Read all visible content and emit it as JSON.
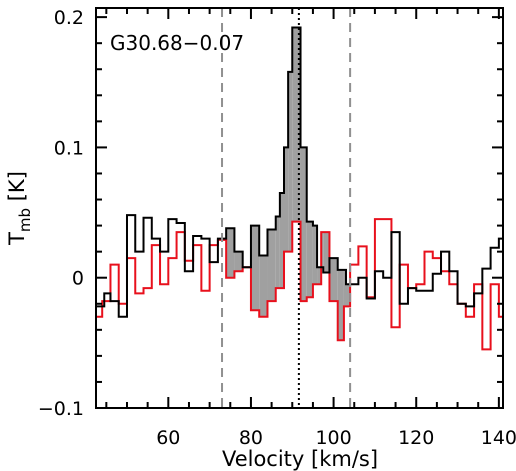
{
  "chart_data": {
    "type": "line",
    "title": "",
    "xlabel": "Velocity [km/s]",
    "ylabel": "T",
    "ylabel_sub": "mb",
    "ylabel_unit": " [K]",
    "annotation": "G30.68−0.07",
    "xlim": [
      42.5,
      141
    ],
    "ylim": [
      -0.1,
      0.207
    ],
    "x_ticks": [
      60,
      80,
      100,
      120,
      140
    ],
    "x_tick_labels": [
      "60",
      "80",
      "100",
      "120",
      "140"
    ],
    "y_ticks": [
      -0.1,
      0,
      0.1,
      0.2
    ],
    "y_tick_labels": [
      "−0.1",
      "0",
      "0.1",
      "0.2"
    ],
    "grid": false,
    "legend": "none",
    "vlines": [
      {
        "x": 73,
        "style": "dashed",
        "color": "#909090"
      },
      {
        "x": 91.6,
        "style": "dotted",
        "color": "#000000"
      },
      {
        "x": 104,
        "style": "dashed",
        "color": "#909090"
      }
    ],
    "fill_region": [
      73,
      104
    ],
    "fill_color": "#a0a0a0",
    "series": [
      {
        "color": "#000000",
        "bin_edges": [
          42.5,
          44.5,
          46,
          48,
          50,
          52,
          54,
          56,
          58,
          60,
          62,
          64,
          66,
          68,
          70,
          72,
          74,
          76,
          78,
          80,
          82,
          84,
          86,
          87,
          88,
          89,
          90,
          92,
          93.5,
          95,
          96,
          97.5,
          99,
          101,
          103,
          104.5,
          106,
          108,
          110,
          112,
          114,
          116,
          118,
          120,
          122,
          124,
          126,
          128,
          130,
          132,
          134,
          136,
          138,
          140,
          141
        ],
        "values": [
          -0.022,
          -0.012,
          -0.018,
          -0.03,
          0.048,
          0.02,
          0.046,
          0.03,
          0.02,
          0.045,
          0.042,
          0.005,
          0.032,
          0.03,
          0.012,
          0.03,
          0.038,
          0.02,
          0.008,
          0.04,
          0.017,
          0.037,
          0.047,
          0.065,
          0.1,
          0.158,
          0.192,
          0.1,
          0.043,
          0.04,
          0.008,
          0.004,
          0.015,
          0.006,
          -0.005,
          -0.005,
          0.0,
          -0.016,
          0.005,
          0.0,
          0.035,
          -0.02,
          -0.008,
          -0.01,
          -0.01,
          0.003,
          0.02,
          0.005,
          -0.02,
          -0.022,
          -0.012,
          0.007,
          0.023,
          0.03
        ]
      },
      {
        "color": "#e8101c",
        "bin_edges": [
          42.5,
          44,
          46,
          48,
          50,
          52,
          54,
          56,
          58,
          60,
          62,
          64,
          66,
          68,
          70,
          72,
          74,
          76,
          78,
          80,
          82,
          84,
          86,
          88,
          90,
          92,
          93.5,
          95,
          97,
          99,
          101,
          102.5,
          104,
          106,
          108,
          110,
          112,
          114,
          116,
          118,
          120,
          122,
          124,
          126,
          128,
          130,
          132,
          134,
          136,
          138,
          140,
          141
        ],
        "values": [
          -0.03,
          -0.018,
          0.01,
          -0.02,
          0.015,
          -0.012,
          -0.008,
          0.025,
          -0.005,
          0.015,
          0.035,
          0.013,
          0.025,
          -0.01,
          0.025,
          0.029,
          0.0,
          0.005,
          0.008,
          -0.025,
          -0.03,
          -0.018,
          -0.008,
          0.02,
          0.043,
          -0.018,
          -0.015,
          -0.005,
          0.035,
          -0.018,
          -0.048,
          -0.022,
          0.01,
          0.024,
          -0.015,
          0.045,
          0.045,
          -0.038,
          0.01,
          -0.008,
          -0.005,
          0.02,
          0.015,
          0.005,
          -0.005,
          -0.02,
          -0.03,
          -0.005,
          -0.055,
          -0.005,
          -0.03
        ]
      }
    ]
  }
}
